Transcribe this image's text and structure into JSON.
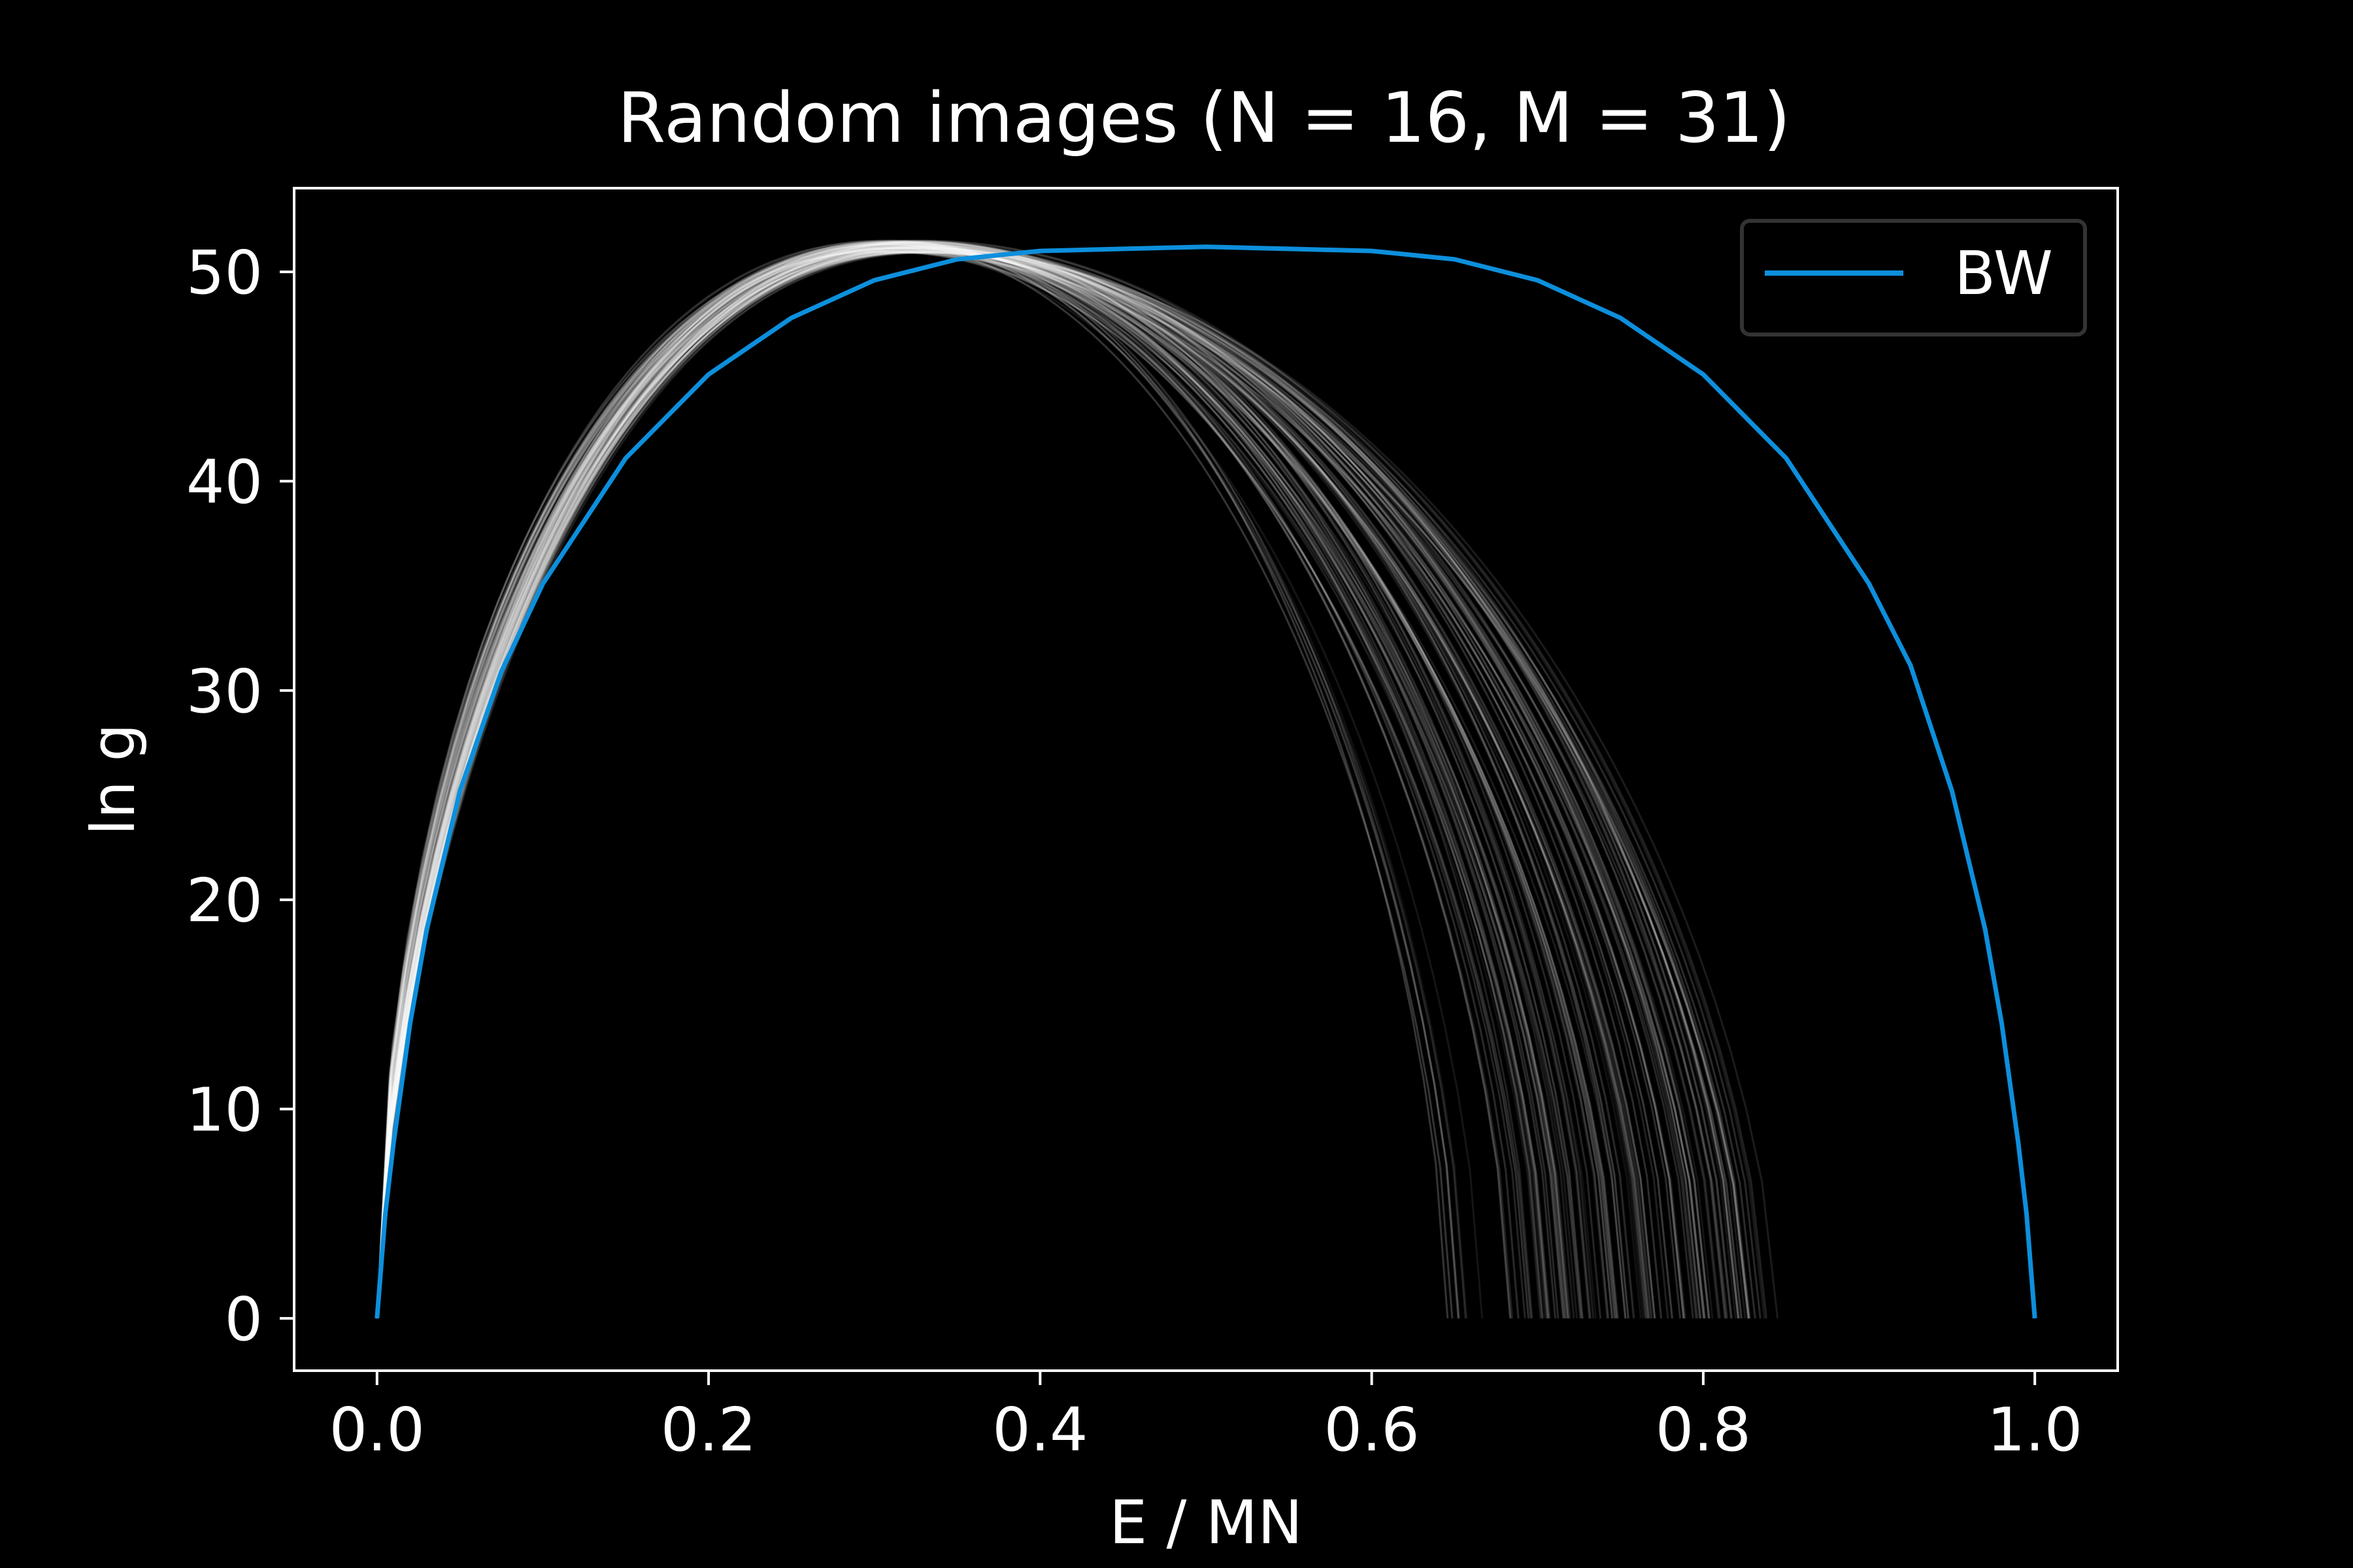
{
  "chart_data": {
    "type": "line",
    "title": "Random images (N = 16, M = 31)",
    "xlabel": "E / MN",
    "ylabel": "ln g",
    "xlim": [
      -0.05,
      1.05
    ],
    "ylim": [
      -2.5,
      54
    ],
    "xticks": [
      0.0,
      0.2,
      0.4,
      0.6,
      0.8,
      1.0
    ],
    "xtick_labels": [
      "0.0",
      "0.2",
      "0.4",
      "0.6",
      "0.8",
      "1.0"
    ],
    "yticks": [
      0,
      10,
      20,
      30,
      40,
      50
    ],
    "ytick_labels": [
      "0",
      "10",
      "20",
      "30",
      "40",
      "50"
    ],
    "grid": false,
    "legend": {
      "position": "top-right",
      "entries": [
        {
          "label": "BW",
          "color": "#0d8fdc"
        }
      ]
    },
    "series": [
      {
        "name": "BW",
        "color": "#0d8fdc",
        "x": [
          0.0,
          0.005,
          0.01,
          0.02,
          0.03,
          0.05,
          0.075,
          0.1,
          0.15,
          0.2,
          0.25,
          0.3,
          0.35,
          0.4,
          0.45,
          0.5,
          0.55,
          0.6,
          0.65,
          0.7,
          0.75,
          0.8,
          0.85,
          0.9,
          0.925,
          0.95,
          0.97,
          0.98,
          0.99,
          0.995,
          1.0
        ],
        "y": [
          0.0,
          5.0,
          8.4,
          14.1,
          18.6,
          25.2,
          30.9,
          35.1,
          41.1,
          45.1,
          47.8,
          49.6,
          50.6,
          51.0,
          51.1,
          51.2,
          51.1,
          51.0,
          50.6,
          49.6,
          47.8,
          45.1,
          41.1,
          35.1,
          31.2,
          25.2,
          18.6,
          14.1,
          8.4,
          5.0,
          0.0
        ]
      }
    ],
    "random_curves": {
      "color": "#ffffff",
      "count": 110,
      "peak_x": 0.32,
      "peak_y": 51.5,
      "zero_x_range": [
        0.64,
        0.87
      ],
      "zero_x_dense_range": [
        0.68,
        0.84
      ]
    }
  }
}
